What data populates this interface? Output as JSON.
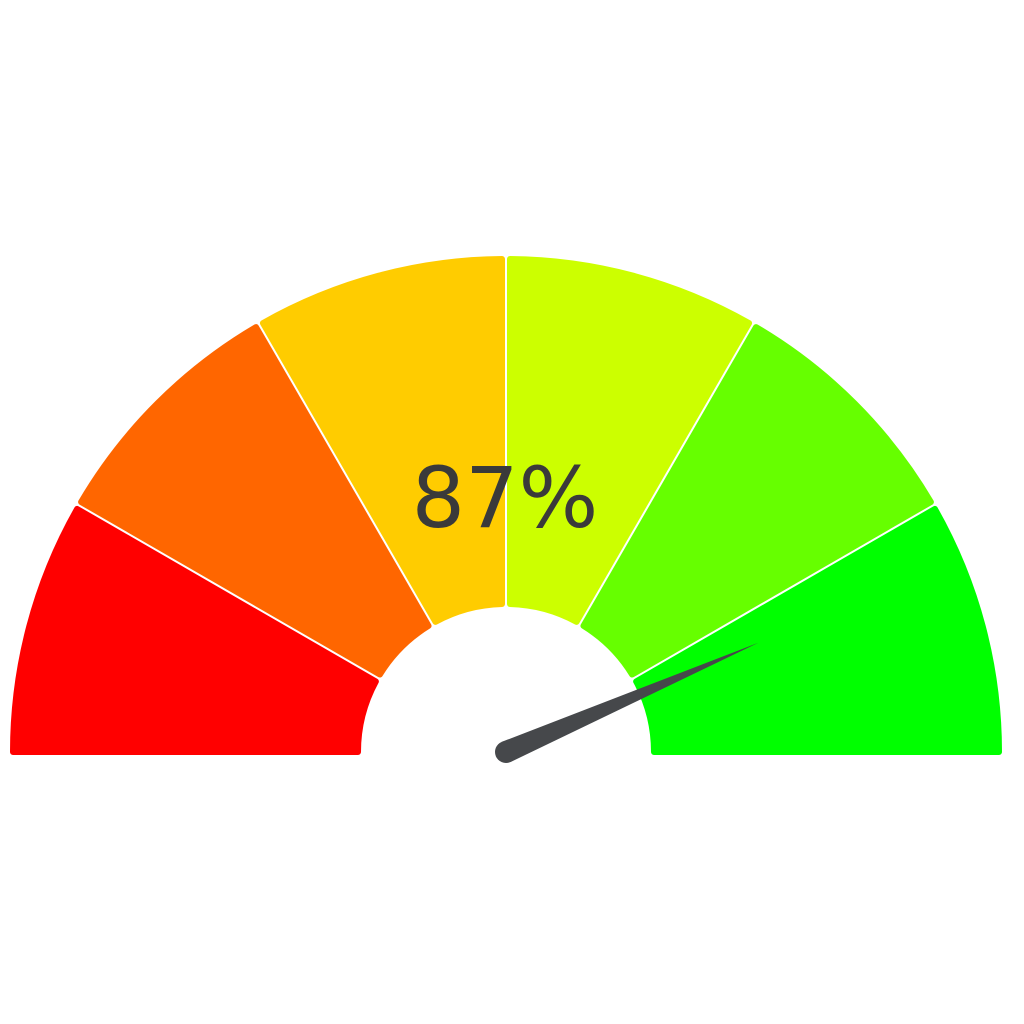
{
  "chart_data": {
    "type": "gauge",
    "value": 87,
    "min": 0,
    "max": 100,
    "value_label": "87%",
    "segments": [
      {
        "from": 0,
        "to": 16.67,
        "color": "#FF0000"
      },
      {
        "from": 16.67,
        "to": 33.33,
        "color": "#FF6600"
      },
      {
        "from": 33.33,
        "to": 50,
        "color": "#FFCC00"
      },
      {
        "from": 50,
        "to": 66.67,
        "color": "#CCFF00"
      },
      {
        "from": 66.67,
        "to": 83.33,
        "color": "#66FF00"
      },
      {
        "from": 83.33,
        "to": 100,
        "color": "#00FF00"
      }
    ],
    "needle_color": "#46484B",
    "text_color": "#3A3A3A"
  }
}
